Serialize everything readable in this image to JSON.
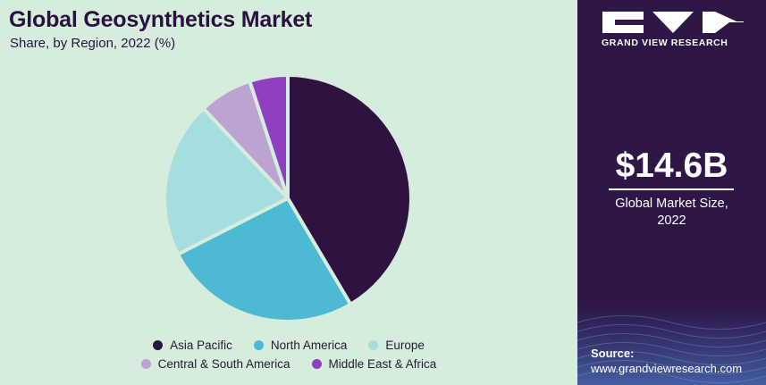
{
  "header": {
    "title": "Global Geosynthetics Market",
    "subtitle": "Share, by Region, 2022 (%)"
  },
  "chart_data": {
    "type": "pie",
    "title": "Global Geosynthetics Market",
    "subtitle": "Share, by Region, 2022 (%)",
    "categories": [
      "Asia Pacific",
      "North America",
      "Europe",
      "Central & South America",
      "Middle East & Africa"
    ],
    "values": [
      41.5,
      26,
      20.5,
      7,
      5
    ],
    "colors": [
      "#2e1341",
      "#4db9d2",
      "#a6dedf",
      "#bba4d2",
      "#8f3fc0"
    ],
    "start": "12 o'clock",
    "direction": "clockwise",
    "legend_position": "bottom"
  },
  "legend": [
    {
      "label": "Asia Pacific",
      "color": "#2e1341"
    },
    {
      "label": "North America",
      "color": "#4db9d2"
    },
    {
      "label": "Europe",
      "color": "#a6dedf"
    },
    {
      "label": "Central & South America",
      "color": "#bba4d2"
    },
    {
      "label": "Middle East & Africa",
      "color": "#8f3fc0"
    }
  ],
  "sidebar": {
    "brand": "GRAND VIEW RESEARCH",
    "market_value": "$14.6B",
    "market_caption_line1": "Global Market Size,",
    "market_caption_line2": "2022",
    "source_label": "Source:",
    "source_url": "www.grandviewresearch.com",
    "background": "#2e1647"
  }
}
